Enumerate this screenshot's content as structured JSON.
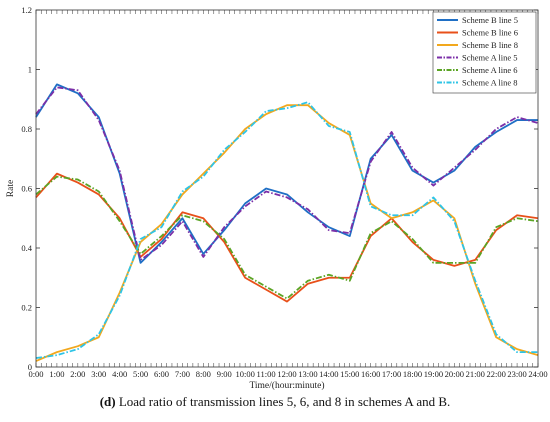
{
  "caption": {
    "label": "(d)",
    "text": "Load ratio of transmission lines 5, 6, and 8 in schemes A and B."
  },
  "chart_data": {
    "type": "line",
    "title": "",
    "xlabel": "Time/(hour:minute)",
    "ylabel": "Rate",
    "xlim": [
      0,
      24
    ],
    "ylim": [
      0,
      1.2
    ],
    "grid": false,
    "legend_position": "top-right",
    "x_tick_labels": [
      "0:00",
      "1:00",
      "2:00",
      "3:00",
      "4:00",
      "5:00",
      "6:00",
      "7:00",
      "8:00",
      "9:00",
      "10:00",
      "11:00",
      "12:00",
      "13:00",
      "14:00",
      "15:00",
      "16:00",
      "17:00",
      "18:00",
      "19:00",
      "20:00",
      "21:00",
      "22:00",
      "23:00",
      "24:00"
    ],
    "y_ticks": [
      0,
      0.2,
      0.4,
      0.6,
      0.8,
      1,
      1.2
    ],
    "x": [
      0,
      1,
      2,
      3,
      4,
      5,
      6,
      7,
      8,
      9,
      10,
      11,
      12,
      13,
      14,
      15,
      16,
      17,
      18,
      19,
      20,
      21,
      22,
      23,
      24
    ],
    "series": [
      {
        "name": "Scheme B line 5",
        "color": "#1f6fc5",
        "dash": "solid",
        "values": [
          0.84,
          0.95,
          0.92,
          0.84,
          0.65,
          0.35,
          0.42,
          0.5,
          0.38,
          0.46,
          0.55,
          0.6,
          0.58,
          0.52,
          0.47,
          0.44,
          0.7,
          0.78,
          0.66,
          0.62,
          0.66,
          0.74,
          0.79,
          0.83,
          0.83
        ]
      },
      {
        "name": "Scheme B line 6",
        "color": "#e8501a",
        "dash": "solid",
        "values": [
          0.57,
          0.65,
          0.62,
          0.58,
          0.5,
          0.37,
          0.43,
          0.52,
          0.5,
          0.42,
          0.3,
          0.26,
          0.22,
          0.28,
          0.3,
          0.3,
          0.44,
          0.5,
          0.42,
          0.36,
          0.34,
          0.36,
          0.46,
          0.51,
          0.5
        ]
      },
      {
        "name": "Scheme B line 8",
        "color": "#f2a81d",
        "dash": "solid",
        "values": [
          0.02,
          0.05,
          0.07,
          0.1,
          0.25,
          0.42,
          0.48,
          0.58,
          0.65,
          0.72,
          0.8,
          0.85,
          0.88,
          0.88,
          0.82,
          0.78,
          0.55,
          0.5,
          0.52,
          0.56,
          0.5,
          0.28,
          0.1,
          0.06,
          0.04
        ]
      },
      {
        "name": "Scheme A line 5",
        "color": "#7b2fa8",
        "dash": "dashdot",
        "values": [
          0.85,
          0.94,
          0.93,
          0.83,
          0.66,
          0.36,
          0.41,
          0.49,
          0.37,
          0.47,
          0.54,
          0.59,
          0.57,
          0.53,
          0.46,
          0.45,
          0.69,
          0.79,
          0.67,
          0.61,
          0.67,
          0.73,
          0.8,
          0.84,
          0.82
        ]
      },
      {
        "name": "Scheme A line 6",
        "color": "#5ba424",
        "dash": "dashdot",
        "values": [
          0.58,
          0.64,
          0.63,
          0.59,
          0.49,
          0.38,
          0.44,
          0.51,
          0.49,
          0.43,
          0.31,
          0.27,
          0.23,
          0.29,
          0.31,
          0.29,
          0.45,
          0.49,
          0.43,
          0.35,
          0.35,
          0.35,
          0.47,
          0.5,
          0.49
        ]
      },
      {
        "name": "Scheme A line 8",
        "color": "#2ec4e6",
        "dash": "dashdot",
        "values": [
          0.03,
          0.04,
          0.06,
          0.11,
          0.24,
          0.43,
          0.47,
          0.59,
          0.64,
          0.73,
          0.79,
          0.86,
          0.87,
          0.89,
          0.81,
          0.79,
          0.54,
          0.51,
          0.51,
          0.57,
          0.49,
          0.29,
          0.11,
          0.05,
          0.05
        ]
      }
    ]
  }
}
